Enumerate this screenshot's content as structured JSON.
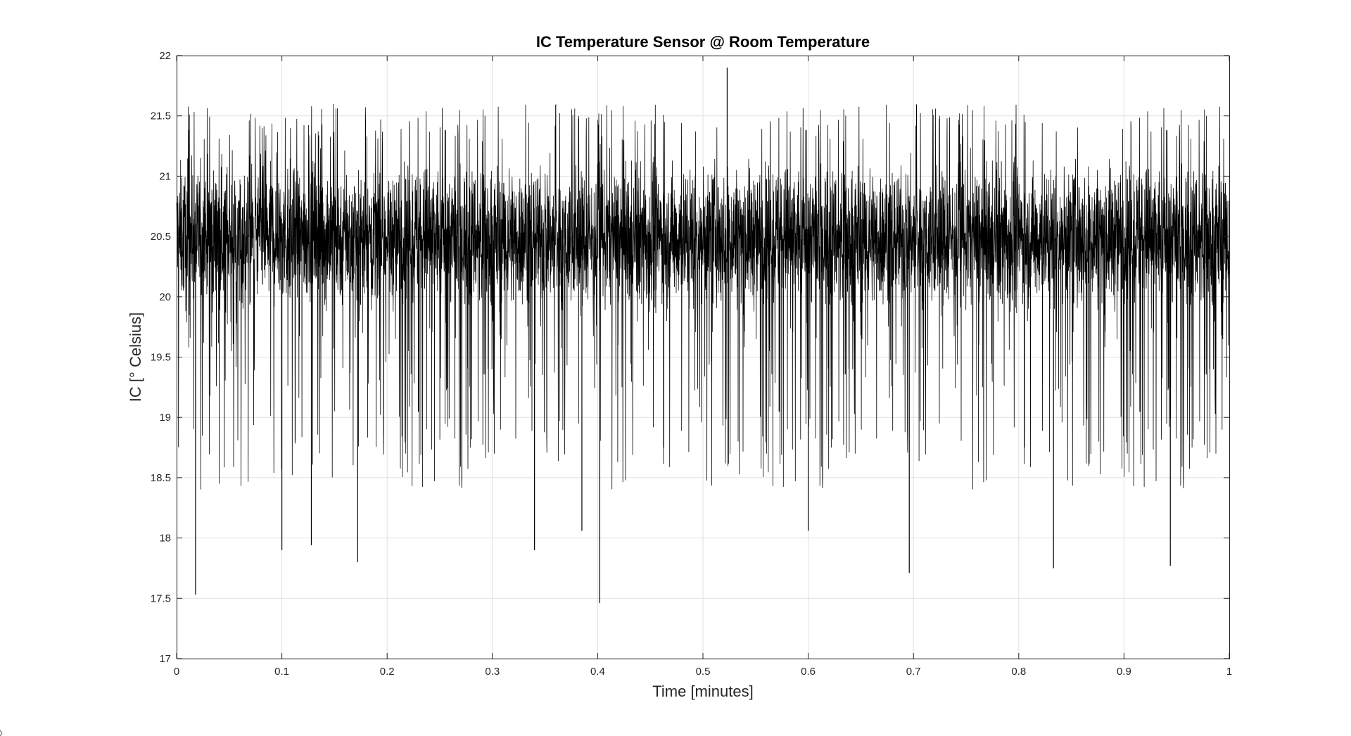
{
  "chart_data": {
    "type": "line",
    "title": "IC Temperature Sensor @ Room Temperature",
    "xlabel": "Time [minutes]",
    "ylabel": "IC [° Celsius]",
    "xlim": [
      0,
      1
    ],
    "ylim": [
      17,
      22
    ],
    "xticks": [
      "0",
      "0.1",
      "0.2",
      "0.3",
      "0.4",
      "0.5",
      "0.6",
      "0.7",
      "0.8",
      "0.9",
      "1"
    ],
    "xtick_values": [
      0,
      0.1,
      0.2,
      0.3,
      0.4,
      0.5,
      0.6,
      0.7,
      0.8,
      0.9,
      1
    ],
    "yticks": [
      "17",
      "17.5",
      "18",
      "18.5",
      "19",
      "19.5",
      "20",
      "20.5",
      "21",
      "21.5",
      "22"
    ],
    "ytick_values": [
      17,
      17.5,
      18,
      18.5,
      19,
      19.5,
      20,
      20.5,
      21,
      21.5,
      22
    ],
    "grid": true,
    "series": [
      {
        "color": "#000000",
        "dense_band": [
          19.7,
          21.3
        ],
        "typical_max": 21.6,
        "max": {
          "x": 0.523,
          "y": 21.9
        },
        "min": {
          "x": 0.402,
          "y": 17.46
        },
        "notable_minima": [
          {
            "x": 0.018,
            "y": 17.53
          },
          {
            "x": 0.1,
            "y": 17.9
          },
          {
            "x": 0.128,
            "y": 17.94
          },
          {
            "x": 0.172,
            "y": 17.8
          },
          {
            "x": 0.34,
            "y": 17.9
          },
          {
            "x": 0.385,
            "y": 18.06
          },
          {
            "x": 0.402,
            "y": 17.46
          },
          {
            "x": 0.6,
            "y": 18.06
          },
          {
            "x": 0.696,
            "y": 17.71
          },
          {
            "x": 0.833,
            "y": 17.75
          },
          {
            "x": 0.944,
            "y": 17.77
          }
        ]
      }
    ]
  }
}
